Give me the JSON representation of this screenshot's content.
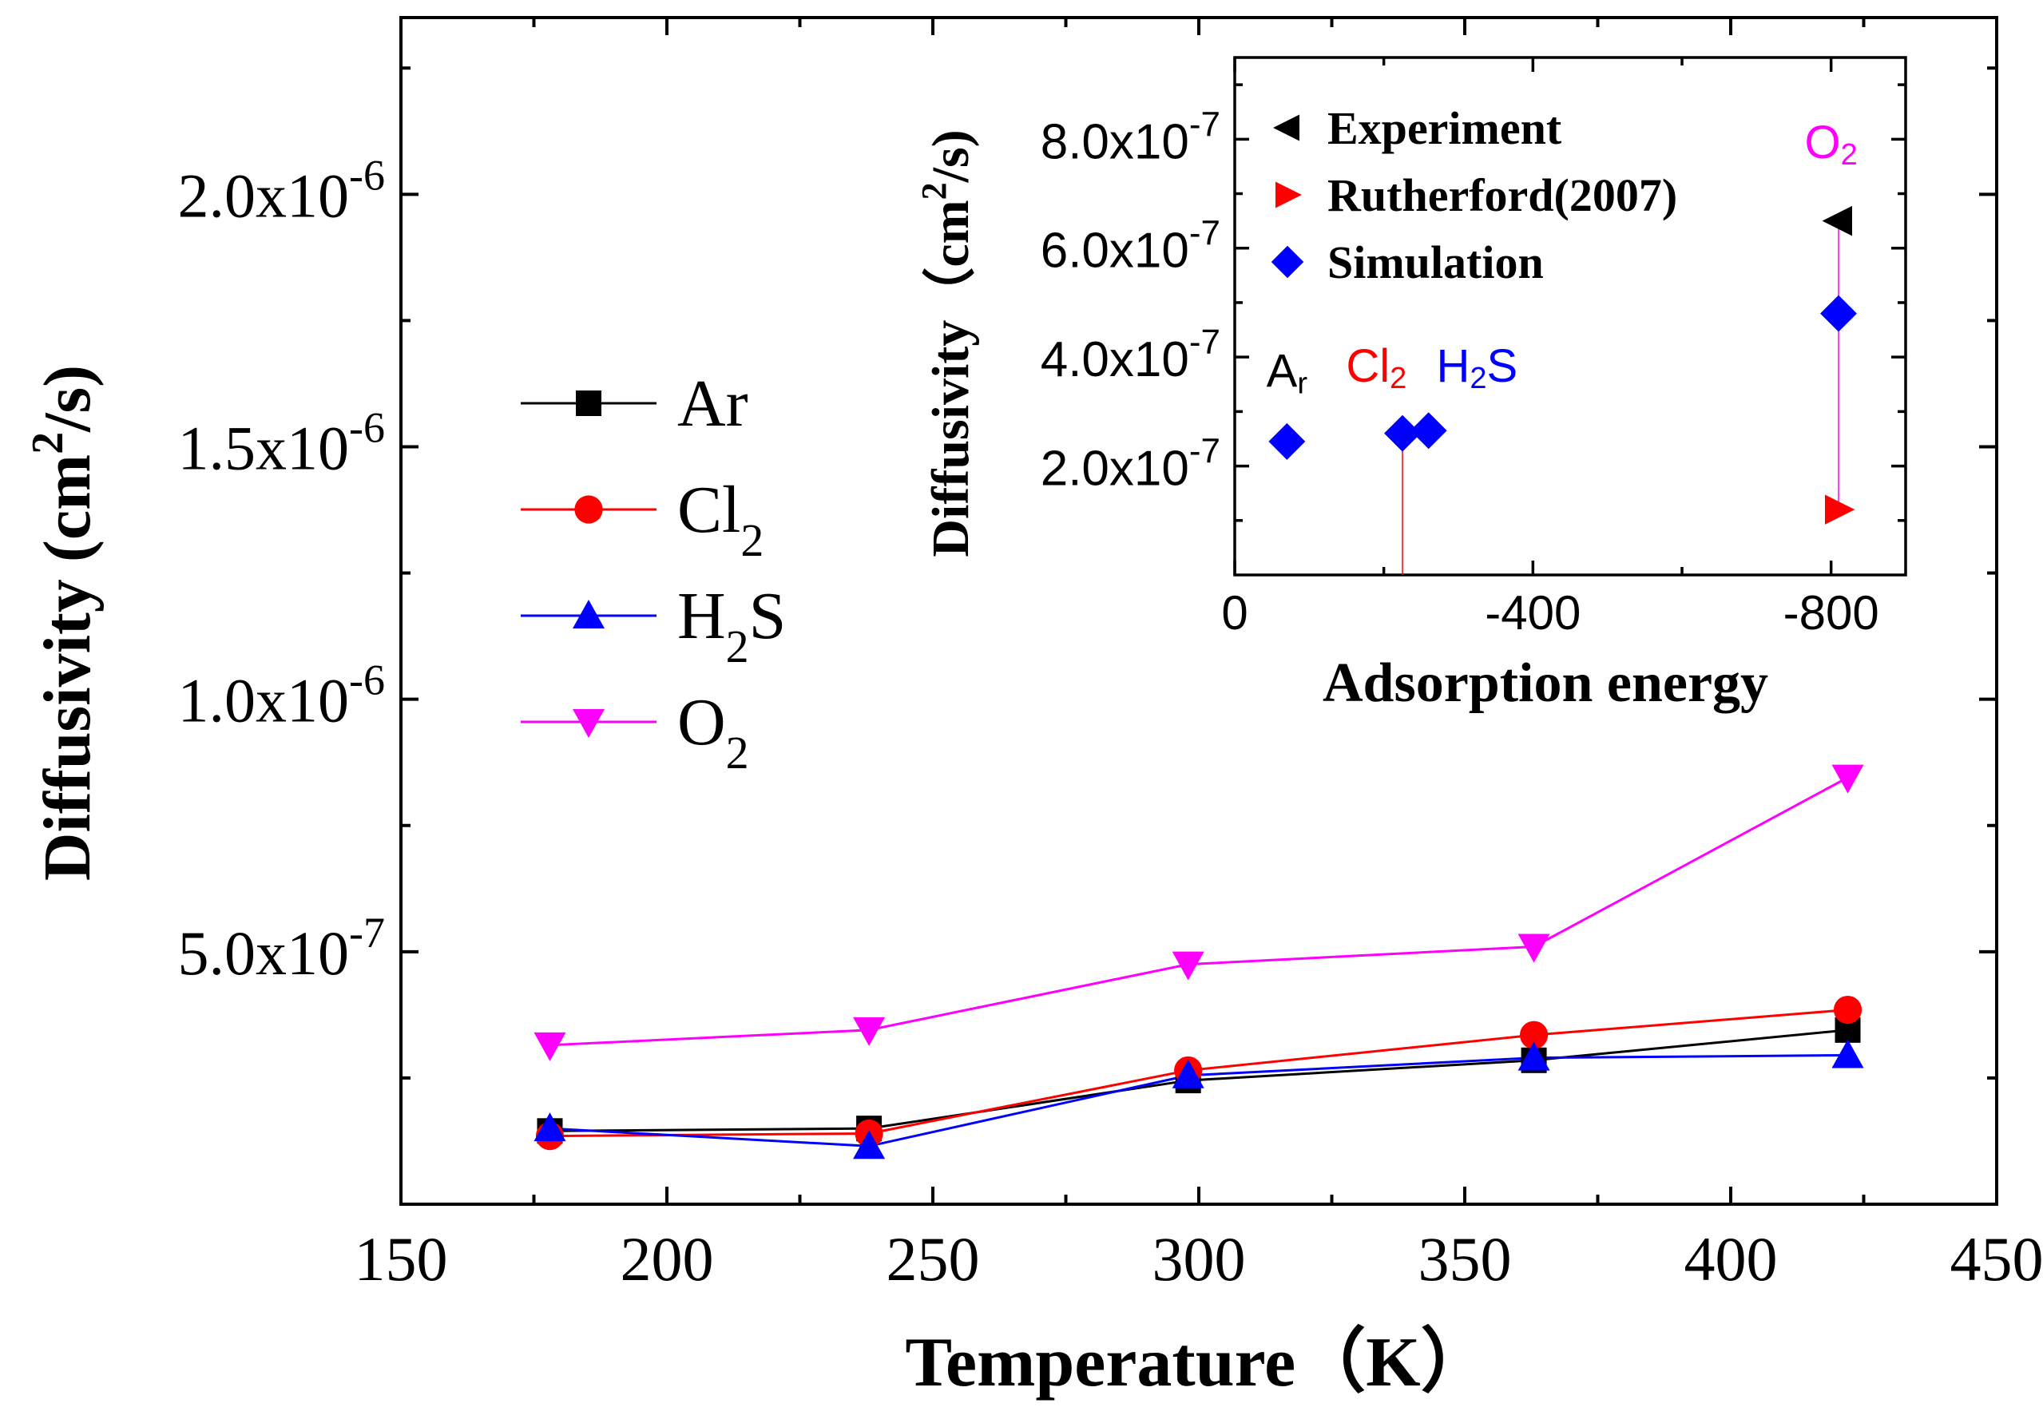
{
  "chart_data": [
    {
      "type": "line",
      "title": "",
      "xlabel": "Temperature（K）",
      "ylabel_main": "Diffusivity (cm",
      "ylabel_sup": "2",
      "ylabel_tail": "/s)",
      "xlim": [
        150,
        450
      ],
      "ylim": [
        0.0,
        2.35e-06
      ],
      "xticks": [
        150,
        200,
        250,
        300,
        350,
        400,
        450
      ],
      "xtick_labels": [
        "150",
        "200",
        "250",
        "300",
        "350",
        "400",
        "450"
      ],
      "yticks": [
        5e-07,
        1e-06,
        1.5e-06,
        2e-06
      ],
      "ytick_mantissas": [
        "5.0x10",
        "1.0x10",
        "1.5x10",
        "2.0x10"
      ],
      "ytick_exponents": [
        "-7",
        "-6",
        "-6",
        "-6"
      ],
      "x": [
        178,
        238,
        298,
        363,
        422
      ],
      "legend_position": "middle-left",
      "series": [
        {
          "name": "Ar",
          "sub": "",
          "marker": "square",
          "color": "#000000",
          "values": [
            1.45e-07,
            1.5e-07,
            2.45e-07,
            2.85e-07,
            3.45e-07
          ]
        },
        {
          "name": "Cl",
          "sub": "2",
          "marker": "circle",
          "color": "#ff0000",
          "values": [
            1.35e-07,
            1.4e-07,
            2.65e-07,
            3.35e-07,
            3.85e-07
          ]
        },
        {
          "name": "H",
          "sub": "2",
          "suffix": "S",
          "marker": "triangle-up",
          "color": "#0000ff",
          "values": [
            1.5e-07,
            1.15e-07,
            2.55e-07,
            2.9e-07,
            2.95e-07
          ]
        },
        {
          "name": "O",
          "sub": "2",
          "marker": "triangle-down",
          "color": "#ff00ff",
          "values": [
            3.15e-07,
            3.45e-07,
            4.75e-07,
            5.1e-07,
            8.45e-07
          ]
        }
      ]
    },
    {
      "type": "scatter",
      "title": "",
      "xlabel": "Adsorption energy",
      "ylabel_main": "Diffusivity（cm",
      "ylabel_sup": "2",
      "ylabel_tail": "/s)",
      "xlim": [
        0,
        -900
      ],
      "ylim": [
        0.0,
        9.5e-07
      ],
      "xticks": [
        0,
        -400,
        -800
      ],
      "xtick_labels": [
        "0",
        "-400",
        "-800"
      ],
      "yticks": [
        2e-07,
        4e-07,
        6e-07,
        8e-07
      ],
      "ytick_mantissas": [
        "2.0x10",
        "4.0x10",
        "6.0x10",
        "8.0x10"
      ],
      "ytick_exponents": [
        "-7",
        "-7",
        "-7",
        "-7"
      ],
      "legend_position": "top-left",
      "series": [
        {
          "name": "Experiment",
          "marker": "triangle-left",
          "color": "#000000",
          "points": [
            {
              "x": -810,
              "y": 6.5e-07
            }
          ]
        },
        {
          "name": "Rutherford(2007)",
          "marker": "triangle-right",
          "color": "#ff0000",
          "points": [
            {
              "x": -810,
              "y": 1.2e-07
            }
          ]
        },
        {
          "name": "Simulation",
          "marker": "diamond",
          "color": "#0000ff",
          "points": [
            {
              "x": -70,
              "y": 2.45e-07
            },
            {
              "x": -225,
              "y": 2.6e-07
            },
            {
              "x": -260,
              "y": 2.65e-07
            },
            {
              "x": -810,
              "y": 4.8e-07
            }
          ]
        }
      ],
      "reference_lines": [
        {
          "x": -225,
          "y_from": 0.0,
          "y_to": 2.6e-07,
          "color": "#ff0000"
        },
        {
          "x": -810,
          "y_from": 1.2e-07,
          "y_to": 6.5e-07,
          "color": "#ff00ff"
        }
      ],
      "annotations": [
        {
          "text": "A",
          "sub": "r",
          "color": "#000000",
          "x": -70,
          "y": 3.45e-07
        },
        {
          "text": "Cl",
          "sub": "2",
          "color": "#ff0000",
          "x": -190,
          "y": 3.55e-07
        },
        {
          "text": "H",
          "sub": "2",
          "suffix": "S",
          "color": "#0000ff",
          "x": -325,
          "y": 3.55e-07
        },
        {
          "text": "O",
          "sub": "2",
          "color": "#ff00ff",
          "x": -800,
          "y": 7.65e-07
        }
      ]
    }
  ]
}
